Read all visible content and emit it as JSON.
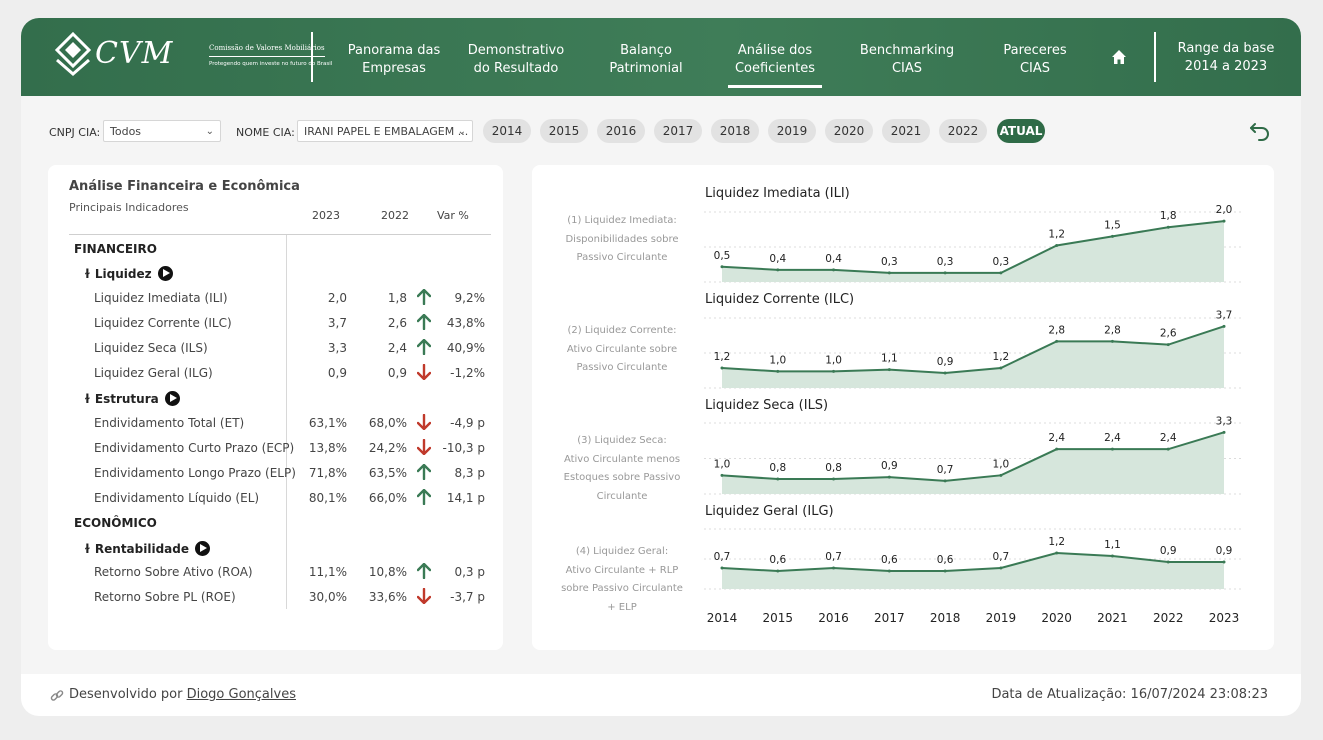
{
  "brand": {
    "logo_text": "CVM",
    "tagline1": "Comissão de Valores Mobiliários",
    "tagline2": "Protegendo quem investe no futuro do Brasil"
  },
  "nav": [
    {
      "line1": "Panorama das",
      "line2": "Empresas"
    },
    {
      "line1": "Demonstrativo",
      "line2": "do Resultado"
    },
    {
      "line1": "Balanço",
      "line2": "Patrimonial"
    },
    {
      "line1": "Análise dos",
      "line2": "Coeficientes"
    },
    {
      "line1": "Benchmarking",
      "line2": "CIAS"
    },
    {
      "line1": "Pareceres",
      "line2": "CIAS"
    }
  ],
  "range": {
    "line1": "Range da base",
    "line2": "2014 a 2023"
  },
  "filters": {
    "cnpj_label": "CNPJ CIA:",
    "cnpj_value": "Todos",
    "nome_label": "NOME CIA:",
    "nome_value": "IRANI PAPEL E EMBALAGEM ...",
    "years": [
      "2014",
      "2015",
      "2016",
      "2017",
      "2018",
      "2019",
      "2020",
      "2021",
      "2022",
      "ATUAL"
    ]
  },
  "table": {
    "title": "Análise Financeira e Econômica",
    "subtitle": "Principais Indicadores",
    "headers": [
      "2023",
      "2022",
      "Var %"
    ],
    "sections": {
      "fin": "FINANCEIRO",
      "liq": "Liquidez",
      "est": "Estrutura",
      "eco": "ECONÔMICO",
      "rent": "Rentabilidade"
    },
    "rows": [
      {
        "name": "Liquidez Imediata (ILI)",
        "v2023": "2,0",
        "v2022": "1,8",
        "dir": "up",
        "var": "9,2%"
      },
      {
        "name": "Liquidez Corrente (ILC)",
        "v2023": "3,7",
        "v2022": "2,6",
        "dir": "up",
        "var": "43,8%"
      },
      {
        "name": "Liquidez Seca (ILS)",
        "v2023": "3,3",
        "v2022": "2,4",
        "dir": "up",
        "var": "40,9%"
      },
      {
        "name": "Liquidez Geral (ILG)",
        "v2023": "0,9",
        "v2022": "0,9",
        "dir": "down",
        "var": "-1,2%"
      },
      {
        "name": "Endividamento Total (ET)",
        "v2023": "63,1%",
        "v2022": "68,0%",
        "dir": "down",
        "var": "-4,9 p"
      },
      {
        "name": "Endividamento Curto Prazo (ECP)",
        "v2023": "13,8%",
        "v2022": "24,2%",
        "dir": "down",
        "var": "-10,3 p"
      },
      {
        "name": "Endividamento Longo Prazo (ELP)",
        "v2023": "71,8%",
        "v2022": "63,5%",
        "dir": "up",
        "var": "8,3 p"
      },
      {
        "name": "Endividamento Líquido (EL)",
        "v2023": "80,1%",
        "v2022": "66,0%",
        "dir": "up",
        "var": "14,1 p"
      },
      {
        "name": "Retorno Sobre Ativo (ROA)",
        "v2023": "11,1%",
        "v2022": "10,8%",
        "dir": "up",
        "var": "0,3 p"
      },
      {
        "name": "Retorno Sobre PL (ROE)",
        "v2023": "30,0%",
        "v2022": "33,6%",
        "dir": "down",
        "var": "-3,7 p"
      }
    ]
  },
  "colors": {
    "brand": "#336e4c",
    "up": "#3a7a55",
    "down": "#c0392b",
    "area_fill": "#d6e6dc",
    "line": "#3a7a55"
  },
  "descriptions": [
    [
      "(1) Liquidez Imediata:",
      "Disponibilidades sobre",
      "Passivo Circulante"
    ],
    [
      "(2) Liquidez Corrente:",
      "Ativo Circulante sobre",
      "Passivo Circulante"
    ],
    [
      "(3) Liquidez Seca:",
      "Ativo Circulante menos",
      "Estoques sobre Passivo",
      "Circulante"
    ],
    [
      "(4) Liquidez Geral:",
      "Ativo Circulante + RLP",
      "sobre Passivo Circulante",
      "+ ELP"
    ]
  ],
  "chart_data": [
    {
      "type": "area",
      "title": "Liquidez Imediata (ILI)",
      "x": [
        "2014",
        "2015",
        "2016",
        "2017",
        "2018",
        "2019",
        "2020",
        "2021",
        "2022",
        "2023"
      ],
      "values": [
        0.5,
        0.4,
        0.4,
        0.3,
        0.3,
        0.3,
        1.2,
        1.5,
        1.8,
        2.0
      ],
      "labels": [
        "0,5",
        "0,4",
        "0,4",
        "0,3",
        "0,3",
        "0,3",
        "1,2",
        "1,5",
        "1,8",
        "2,0"
      ],
      "ylim": [
        0,
        2.3
      ]
    },
    {
      "type": "area",
      "title": "Liquidez Corrente (ILC)",
      "x": [
        "2014",
        "2015",
        "2016",
        "2017",
        "2018",
        "2019",
        "2020",
        "2021",
        "2022",
        "2023"
      ],
      "values": [
        1.2,
        1.0,
        1.0,
        1.1,
        0.9,
        1.2,
        2.8,
        2.8,
        2.6,
        3.7
      ],
      "labels": [
        "1,2",
        "1,0",
        "1,0",
        "1,1",
        "0,9",
        "1,2",
        "2,8",
        "2,8",
        "2,6",
        "3,7"
      ],
      "ylim": [
        0,
        4.2
      ]
    },
    {
      "type": "area",
      "title": "Liquidez Seca (ILS)",
      "x": [
        "2014",
        "2015",
        "2016",
        "2017",
        "2018",
        "2019",
        "2020",
        "2021",
        "2022",
        "2023"
      ],
      "values": [
        1.0,
        0.8,
        0.8,
        0.9,
        0.7,
        1.0,
        2.4,
        2.4,
        2.4,
        3.3
      ],
      "labels": [
        "1,0",
        "0,8",
        "0,8",
        "0,9",
        "0,7",
        "1,0",
        "2,4",
        "2,4",
        "2,4",
        "3,3"
      ],
      "ylim": [
        0,
        3.8
      ]
    },
    {
      "type": "area",
      "title": "Liquidez Geral (ILG)",
      "x": [
        "2014",
        "2015",
        "2016",
        "2017",
        "2018",
        "2019",
        "2020",
        "2021",
        "2022",
        "2023"
      ],
      "values": [
        0.7,
        0.6,
        0.7,
        0.6,
        0.6,
        0.7,
        1.2,
        1.1,
        0.9,
        0.9
      ],
      "labels": [
        "0,7",
        "0,6",
        "0,7",
        "0,6",
        "0,6",
        "0,7",
        "1,2",
        "1,1",
        "0,9",
        "0,9"
      ],
      "ylim": [
        0,
        2.0
      ]
    }
  ],
  "footer": {
    "dev_prefix": "Desenvolvido por ",
    "dev_name": "Diogo Gonçalves",
    "update": "Data de Atualização: 16/07/2024 23:08:23"
  }
}
